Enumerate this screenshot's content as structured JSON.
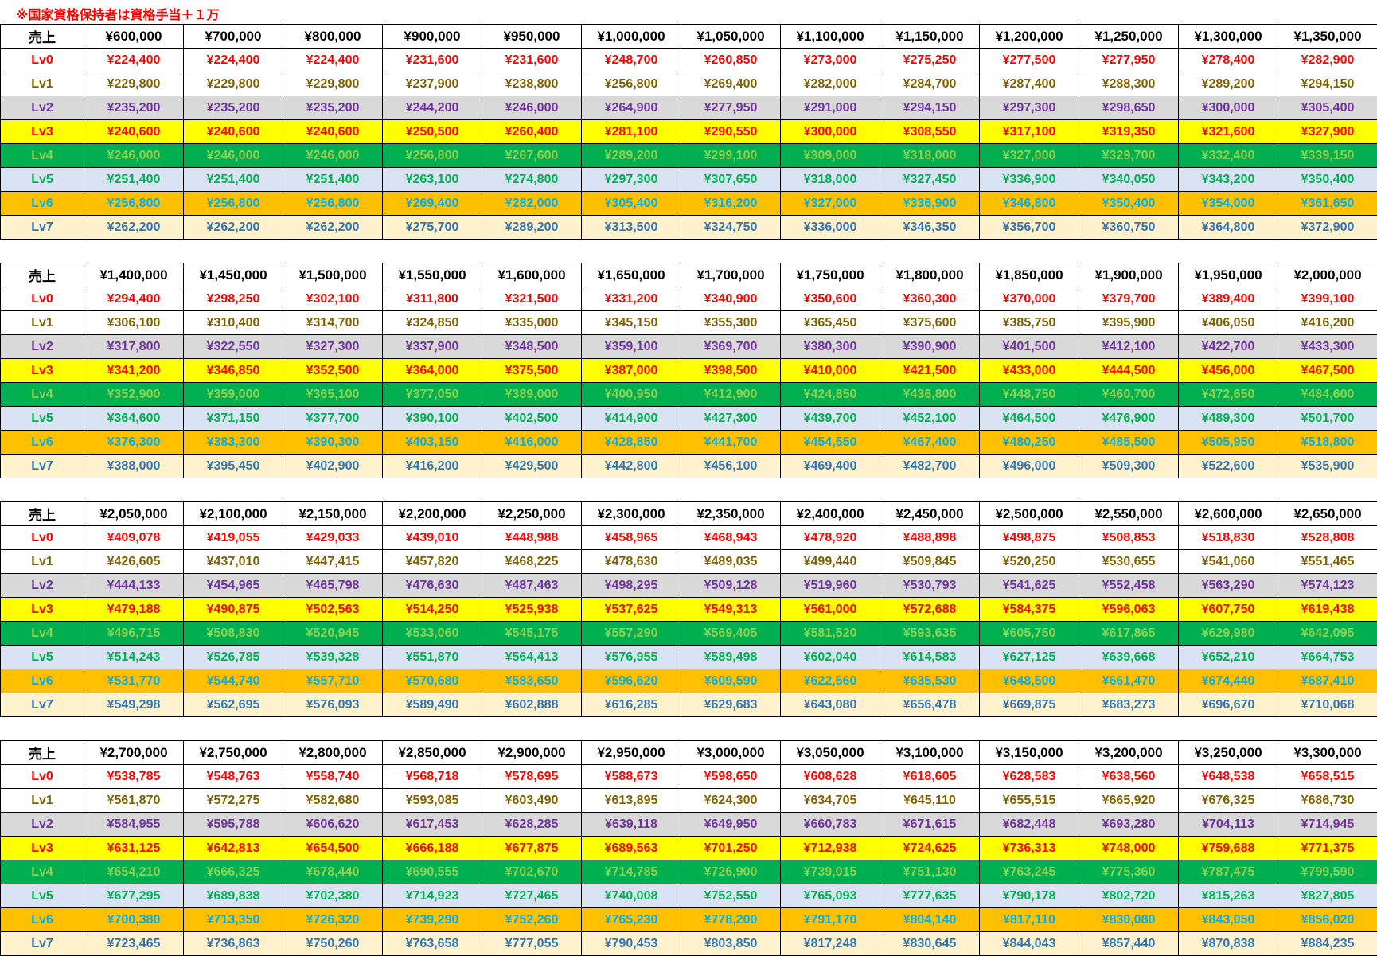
{
  "note": "※国家資格保持者は資格手当＋１万",
  "header_label": "売上",
  "row_labels": [
    "Lv0",
    "Lv1",
    "Lv2",
    "Lv3",
    "Lv4",
    "Lv5",
    "Lv6",
    "Lv7"
  ],
  "row_colors": {
    "Lv0": {
      "text": "#ff0000",
      "bg": "#ffffff"
    },
    "Lv1": {
      "text": "#7f6000",
      "bg": "#ffffff"
    },
    "Lv2": {
      "text": "#7030a0",
      "bg": "#d9d9d9"
    },
    "Lv3": {
      "text": "#ff0000",
      "bg": "#ffff00"
    },
    "Lv4": {
      "text": "#92d050",
      "bg": "#00b050"
    },
    "Lv5": {
      "text": "#00b050",
      "bg": "#dae3f3"
    },
    "Lv6": {
      "text": "#00b0f0",
      "bg": "#ffc000"
    },
    "Lv7": {
      "text": "#2e75b6",
      "bg": "#fff2cc"
    }
  },
  "tables": [
    {
      "sales": [
        "¥600,000",
        "¥700,000",
        "¥800,000",
        "¥900,000",
        "¥950,000",
        "¥1,000,000",
        "¥1,050,000",
        "¥1,100,000",
        "¥1,150,000",
        "¥1,200,000",
        "¥1,250,000",
        "¥1,300,000",
        "¥1,350,000"
      ],
      "rows": [
        [
          "¥224,400",
          "¥224,400",
          "¥224,400",
          "¥231,600",
          "¥231,600",
          "¥248,700",
          "¥260,850",
          "¥273,000",
          "¥275,250",
          "¥277,500",
          "¥277,950",
          "¥278,400",
          "¥282,900"
        ],
        [
          "¥229,800",
          "¥229,800",
          "¥229,800",
          "¥237,900",
          "¥238,800",
          "¥256,800",
          "¥269,400",
          "¥282,000",
          "¥284,700",
          "¥287,400",
          "¥288,300",
          "¥289,200",
          "¥294,150"
        ],
        [
          "¥235,200",
          "¥235,200",
          "¥235,200",
          "¥244,200",
          "¥246,000",
          "¥264,900",
          "¥277,950",
          "¥291,000",
          "¥294,150",
          "¥297,300",
          "¥298,650",
          "¥300,000",
          "¥305,400"
        ],
        [
          "¥240,600",
          "¥240,600",
          "¥240,600",
          "¥250,500",
          "¥260,400",
          "¥281,100",
          "¥290,550",
          "¥300,000",
          "¥308,550",
          "¥317,100",
          "¥319,350",
          "¥321,600",
          "¥327,900"
        ],
        [
          "¥246,000",
          "¥246,000",
          "¥246,000",
          "¥256,800",
          "¥267,600",
          "¥289,200",
          "¥299,100",
          "¥309,000",
          "¥318,000",
          "¥327,000",
          "¥329,700",
          "¥332,400",
          "¥339,150"
        ],
        [
          "¥251,400",
          "¥251,400",
          "¥251,400",
          "¥263,100",
          "¥274,800",
          "¥297,300",
          "¥307,650",
          "¥318,000",
          "¥327,450",
          "¥336,900",
          "¥340,050",
          "¥343,200",
          "¥350,400"
        ],
        [
          "¥256,800",
          "¥256,800",
          "¥256,800",
          "¥269,400",
          "¥282,000",
          "¥305,400",
          "¥316,200",
          "¥327,000",
          "¥336,900",
          "¥346,800",
          "¥350,400",
          "¥354,000",
          "¥361,650"
        ],
        [
          "¥262,200",
          "¥262,200",
          "¥262,200",
          "¥275,700",
          "¥289,200",
          "¥313,500",
          "¥324,750",
          "¥336,000",
          "¥346,350",
          "¥356,700",
          "¥360,750",
          "¥364,800",
          "¥372,900"
        ]
      ]
    },
    {
      "sales": [
        "¥1,400,000",
        "¥1,450,000",
        "¥1,500,000",
        "¥1,550,000",
        "¥1,600,000",
        "¥1,650,000",
        "¥1,700,000",
        "¥1,750,000",
        "¥1,800,000",
        "¥1,850,000",
        "¥1,900,000",
        "¥1,950,000",
        "¥2,000,000"
      ],
      "rows": [
        [
          "¥294,400",
          "¥298,250",
          "¥302,100",
          "¥311,800",
          "¥321,500",
          "¥331,200",
          "¥340,900",
          "¥350,600",
          "¥360,300",
          "¥370,000",
          "¥379,700",
          "¥389,400",
          "¥399,100"
        ],
        [
          "¥306,100",
          "¥310,400",
          "¥314,700",
          "¥324,850",
          "¥335,000",
          "¥345,150",
          "¥355,300",
          "¥365,450",
          "¥375,600",
          "¥385,750",
          "¥395,900",
          "¥406,050",
          "¥416,200"
        ],
        [
          "¥317,800",
          "¥322,550",
          "¥327,300",
          "¥337,900",
          "¥348,500",
          "¥359,100",
          "¥369,700",
          "¥380,300",
          "¥390,900",
          "¥401,500",
          "¥412,100",
          "¥422,700",
          "¥433,300"
        ],
        [
          "¥341,200",
          "¥346,850",
          "¥352,500",
          "¥364,000",
          "¥375,500",
          "¥387,000",
          "¥398,500",
          "¥410,000",
          "¥421,500",
          "¥433,000",
          "¥444,500",
          "¥456,000",
          "¥467,500"
        ],
        [
          "¥352,900",
          "¥359,000",
          "¥365,100",
          "¥377,050",
          "¥389,000",
          "¥400,950",
          "¥412,900",
          "¥424,850",
          "¥436,800",
          "¥448,750",
          "¥460,700",
          "¥472,650",
          "¥484,600"
        ],
        [
          "¥364,600",
          "¥371,150",
          "¥377,700",
          "¥390,100",
          "¥402,500",
          "¥414,900",
          "¥427,300",
          "¥439,700",
          "¥452,100",
          "¥464,500",
          "¥476,900",
          "¥489,300",
          "¥501,700"
        ],
        [
          "¥376,300",
          "¥383,300",
          "¥390,300",
          "¥403,150",
          "¥416,000",
          "¥428,850",
          "¥441,700",
          "¥454,550",
          "¥467,400",
          "¥480,250",
          "¥485,500",
          "¥505,950",
          "¥518,800"
        ],
        [
          "¥388,000",
          "¥395,450",
          "¥402,900",
          "¥416,200",
          "¥429,500",
          "¥442,800",
          "¥456,100",
          "¥469,400",
          "¥482,700",
          "¥496,000",
          "¥509,300",
          "¥522,600",
          "¥535,900"
        ]
      ]
    },
    {
      "sales": [
        "¥2,050,000",
        "¥2,100,000",
        "¥2,150,000",
        "¥2,200,000",
        "¥2,250,000",
        "¥2,300,000",
        "¥2,350,000",
        "¥2,400,000",
        "¥2,450,000",
        "¥2,500,000",
        "¥2,550,000",
        "¥2,600,000",
        "¥2,650,000"
      ],
      "rows": [
        [
          "¥409,078",
          "¥419,055",
          "¥429,033",
          "¥439,010",
          "¥448,988",
          "¥458,965",
          "¥468,943",
          "¥478,920",
          "¥488,898",
          "¥498,875",
          "¥508,853",
          "¥518,830",
          "¥528,808"
        ],
        [
          "¥426,605",
          "¥437,010",
          "¥447,415",
          "¥457,820",
          "¥468,225",
          "¥478,630",
          "¥489,035",
          "¥499,440",
          "¥509,845",
          "¥520,250",
          "¥530,655",
          "¥541,060",
          "¥551,465"
        ],
        [
          "¥444,133",
          "¥454,965",
          "¥465,798",
          "¥476,630",
          "¥487,463",
          "¥498,295",
          "¥509,128",
          "¥519,960",
          "¥530,793",
          "¥541,625",
          "¥552,458",
          "¥563,290",
          "¥574,123"
        ],
        [
          "¥479,188",
          "¥490,875",
          "¥502,563",
          "¥514,250",
          "¥525,938",
          "¥537,625",
          "¥549,313",
          "¥561,000",
          "¥572,688",
          "¥584,375",
          "¥596,063",
          "¥607,750",
          "¥619,438"
        ],
        [
          "¥496,715",
          "¥508,830",
          "¥520,945",
          "¥533,060",
          "¥545,175",
          "¥557,290",
          "¥569,405",
          "¥581,520",
          "¥593,635",
          "¥605,750",
          "¥617,865",
          "¥629,980",
          "¥642,095"
        ],
        [
          "¥514,243",
          "¥526,785",
          "¥539,328",
          "¥551,870",
          "¥564,413",
          "¥576,955",
          "¥589,498",
          "¥602,040",
          "¥614,583",
          "¥627,125",
          "¥639,668",
          "¥652,210",
          "¥664,753"
        ],
        [
          "¥531,770",
          "¥544,740",
          "¥557,710",
          "¥570,680",
          "¥583,650",
          "¥596,620",
          "¥609,590",
          "¥622,560",
          "¥635,530",
          "¥648,500",
          "¥661,470",
          "¥674,440",
          "¥687,410"
        ],
        [
          "¥549,298",
          "¥562,695",
          "¥576,093",
          "¥589,490",
          "¥602,888",
          "¥616,285",
          "¥629,683",
          "¥643,080",
          "¥656,478",
          "¥669,875",
          "¥683,273",
          "¥696,670",
          "¥710,068"
        ]
      ]
    },
    {
      "sales": [
        "¥2,700,000",
        "¥2,750,000",
        "¥2,800,000",
        "¥2,850,000",
        "¥2,900,000",
        "¥2,950,000",
        "¥3,000,000",
        "¥3,050,000",
        "¥3,100,000",
        "¥3,150,000",
        "¥3,200,000",
        "¥3,250,000",
        "¥3,300,000"
      ],
      "rows": [
        [
          "¥538,785",
          "¥548,763",
          "¥558,740",
          "¥568,718",
          "¥578,695",
          "¥588,673",
          "¥598,650",
          "¥608,628",
          "¥618,605",
          "¥628,583",
          "¥638,560",
          "¥648,538",
          "¥658,515"
        ],
        [
          "¥561,870",
          "¥572,275",
          "¥582,680",
          "¥593,085",
          "¥603,490",
          "¥613,895",
          "¥624,300",
          "¥634,705",
          "¥645,110",
          "¥655,515",
          "¥665,920",
          "¥676,325",
          "¥686,730"
        ],
        [
          "¥584,955",
          "¥595,788",
          "¥606,620",
          "¥617,453",
          "¥628,285",
          "¥639,118",
          "¥649,950",
          "¥660,783",
          "¥671,615",
          "¥682,448",
          "¥693,280",
          "¥704,113",
          "¥714,945"
        ],
        [
          "¥631,125",
          "¥642,813",
          "¥654,500",
          "¥666,188",
          "¥677,875",
          "¥689,563",
          "¥701,250",
          "¥712,938",
          "¥724,625",
          "¥736,313",
          "¥748,000",
          "¥759,688",
          "¥771,375"
        ],
        [
          "¥654,210",
          "¥666,325",
          "¥678,440",
          "¥690,555",
          "¥702,670",
          "¥714,785",
          "¥726,900",
          "¥739,015",
          "¥751,130",
          "¥763,245",
          "¥775,360",
          "¥787,475",
          "¥799,590"
        ],
        [
          "¥677,295",
          "¥689,838",
          "¥702,380",
          "¥714,923",
          "¥727,465",
          "¥740,008",
          "¥752,550",
          "¥765,093",
          "¥777,635",
          "¥790,178",
          "¥802,720",
          "¥815,263",
          "¥827,805"
        ],
        [
          "¥700,380",
          "¥713,350",
          "¥726,320",
          "¥739,290",
          "¥752,260",
          "¥765,230",
          "¥778,200",
          "¥791,170",
          "¥804,140",
          "¥817,110",
          "¥830,080",
          "¥843,050",
          "¥856,020"
        ],
        [
          "¥723,465",
          "¥736,863",
          "¥750,260",
          "¥763,658",
          "¥777,055",
          "¥790,453",
          "¥803,850",
          "¥817,248",
          "¥830,645",
          "¥844,043",
          "¥857,440",
          "¥870,838",
          "¥884,235"
        ]
      ]
    }
  ]
}
